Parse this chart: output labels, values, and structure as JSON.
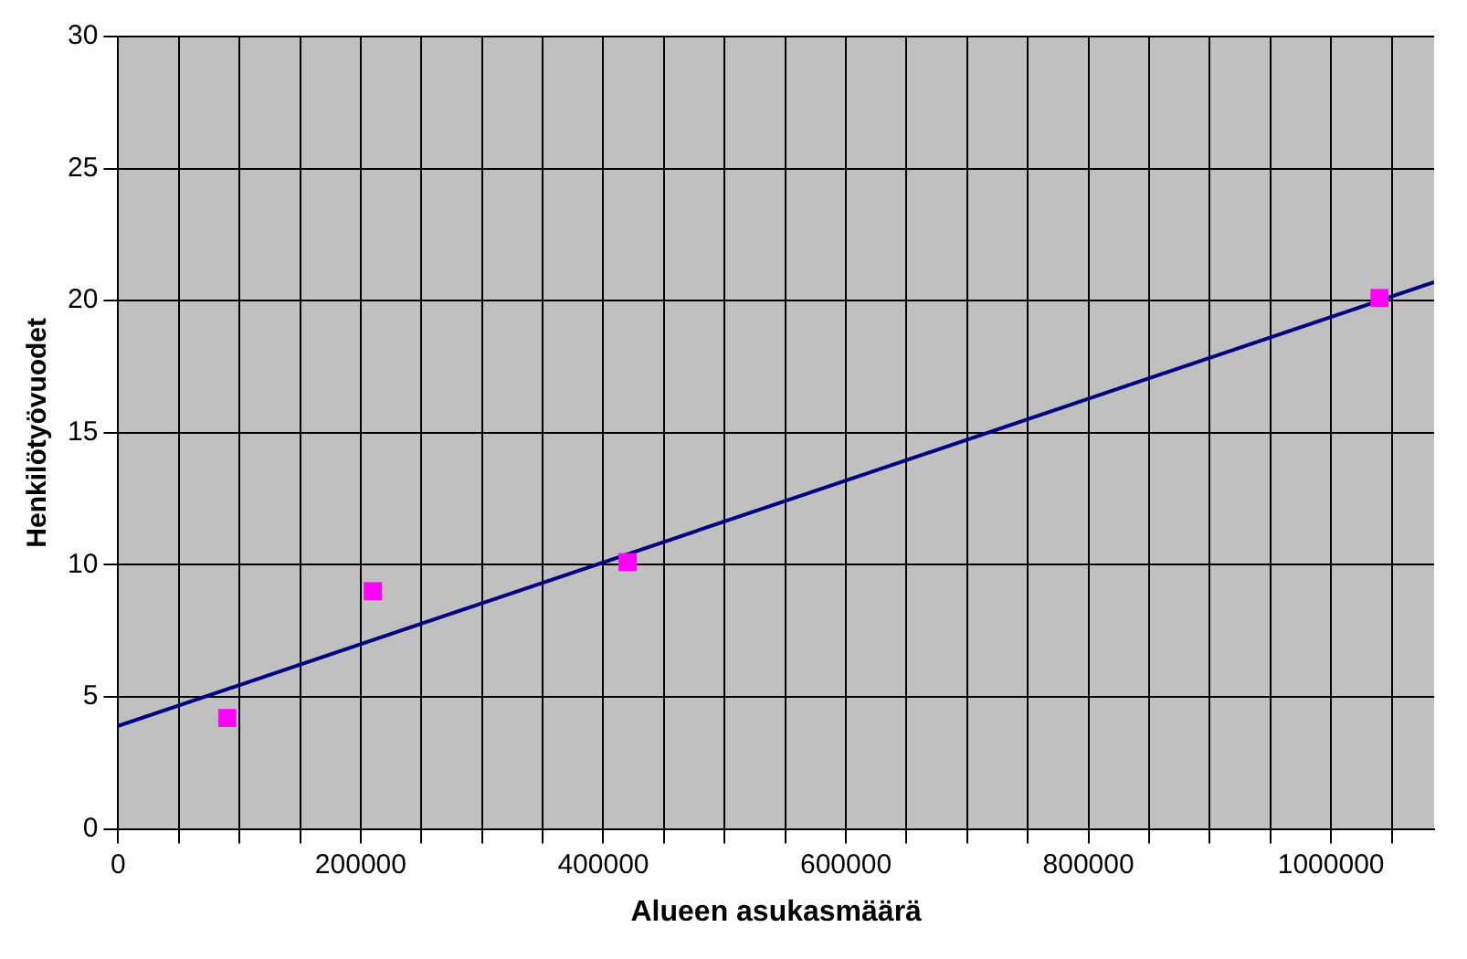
{
  "chart_data": {
    "type": "scatter",
    "xlabel": "Alueen asukasmäärä",
    "ylabel": "Henkilötyövuodet",
    "xlim": [
      0,
      1085000
    ],
    "xticks": [
      0,
      {
        "value": 50000,
        "label": null
      },
      {
        "value": 100000,
        "label": null
      },
      {
        "value": 150000,
        "label": null
      },
      200000,
      {
        "value": 250000,
        "label": null
      },
      {
        "value": 300000,
        "label": null
      },
      {
        "value": 350000,
        "label": null
      },
      400000,
      {
        "value": 450000,
        "label": null
      },
      {
        "value": 500000,
        "label": null
      },
      {
        "value": 550000,
        "label": null
      },
      600000,
      {
        "value": 650000,
        "label": null
      },
      {
        "value": 700000,
        "label": null
      },
      {
        "value": 750000,
        "label": null
      },
      800000,
      {
        "value": 850000,
        "label": null
      },
      {
        "value": 900000,
        "label": null
      },
      {
        "value": 950000,
        "label": null
      },
      1000000,
      {
        "value": 1050000,
        "label": null
      }
    ],
    "ylim": [
      0,
      30
    ],
    "yticks": [
      0,
      5,
      10,
      15,
      20,
      25,
      30
    ],
    "grid": true,
    "legend": false,
    "series": [
      {
        "marker": "square",
        "color": "#ff00ff",
        "x": [
          90000,
          210000,
          420000,
          1040000
        ],
        "values": [
          4.2,
          9.0,
          10.1,
          20.1
        ]
      },
      {
        "type": "line",
        "color": "#000080",
        "x": [
          0,
          1085000
        ],
        "values": [
          3.9,
          20.7
        ]
      }
    ]
  }
}
